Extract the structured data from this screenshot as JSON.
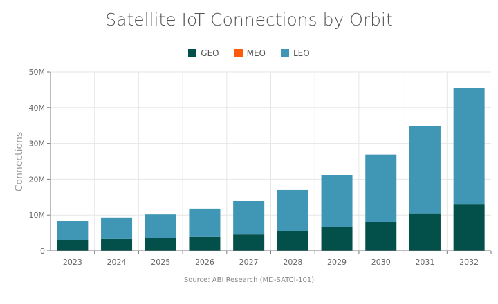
{
  "chart_data": {
    "type": "bar",
    "stacked": true,
    "title": "Satellite IoT Connections by Orbit",
    "ylabel": "Connections",
    "xlabel": "",
    "source": "Source: ABI Research (MD-SATCI-101)",
    "categories": [
      "2023",
      "2024",
      "2025",
      "2026",
      "2027",
      "2028",
      "2029",
      "2030",
      "2031",
      "2032"
    ],
    "series": [
      {
        "name": "GEO",
        "color": "#034f4a",
        "values": [
          2.9,
          3.3,
          3.5,
          3.9,
          4.6,
          5.5,
          6.6,
          8.1,
          10.3,
          13.1
        ]
      },
      {
        "name": "MEO",
        "color": "#ff5a0a",
        "values": [
          0,
          0,
          0,
          0,
          0,
          0,
          0,
          0,
          0,
          0
        ]
      },
      {
        "name": "LEO",
        "color": "#3f96b5",
        "values": [
          5.4,
          6.0,
          6.7,
          7.9,
          9.3,
          11.5,
          14.5,
          18.8,
          24.5,
          32.3
        ]
      }
    ],
    "unit": "M",
    "ylim": [
      0,
      50
    ],
    "yticks": [
      "0",
      "10M",
      "20M",
      "30M",
      "40M",
      "50M"
    ],
    "grid": true,
    "legend": "top"
  }
}
